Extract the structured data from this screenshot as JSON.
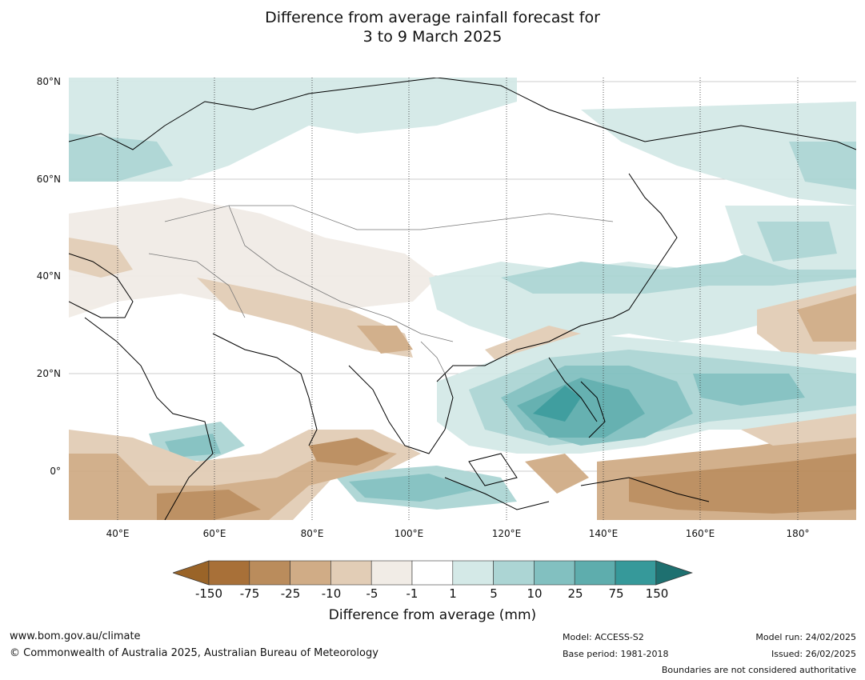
{
  "title": {
    "line1": "Difference from average rainfall forecast for",
    "line2": "3 to 9 March 2025"
  },
  "map": {
    "lat_labels": [
      "80°N",
      "60°N",
      "40°N",
      "20°N",
      "0°"
    ],
    "lon_labels": [
      "40°E",
      "60°E",
      "80°E",
      "100°E",
      "120°E",
      "140°E",
      "160°E",
      "180°"
    ],
    "extent": {
      "lon": [
        30,
        192
      ],
      "lat": [
        -10,
        81
      ]
    }
  },
  "colorbar": {
    "ticks": [
      "-150",
      "-75",
      "-25",
      "-10",
      "-5",
      "-1",
      "1",
      "5",
      "10",
      "25",
      "75",
      "150"
    ],
    "colors": [
      "#a87038",
      "#ba8c5c",
      "#d0ac86",
      "#e2cdb6",
      "#f1ece6",
      "#ffffff",
      "#d4e9e7",
      "#acd5d4",
      "#82c0c0",
      "#5eadad",
      "#36999a",
      "#1a7a7a"
    ],
    "under_color": "#9a6428",
    "over_color": "#1e7070",
    "label": "Difference from average (mm)"
  },
  "footer": {
    "url": "www.bom.gov.au/climate",
    "copyright": "© Commonwealth of Australia 2025, Australian Bureau of Meteorology",
    "model": "Model: ACCESS-S2",
    "base_period": "Base period: 1981-2018",
    "model_run": "Model run: 24/02/2025",
    "issued": "Issued: 26/02/2025",
    "boundaries_note": "Boundaries are not considered authoritative"
  }
}
